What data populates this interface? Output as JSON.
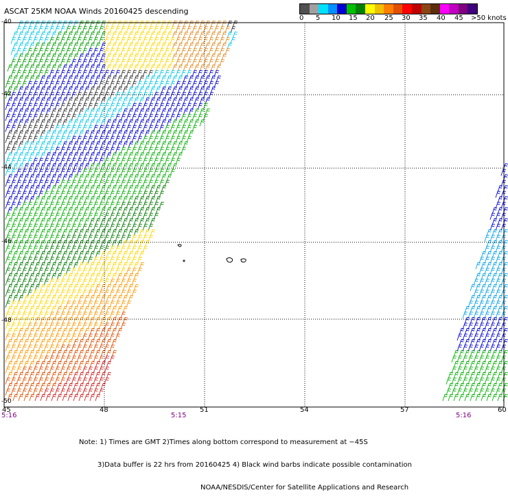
{
  "title": "ASCAT 25KM NOAA Winds 20160425 descending",
  "scale": {
    "colors": [
      "#505050",
      "#a0a0a0",
      "#00e0ff",
      "#0090ff",
      "#0000d0",
      "#00c000",
      "#008000",
      "#ffff00",
      "#f0c000",
      "#ff8000",
      "#e05000",
      "#ff0000",
      "#c00000",
      "#8b4513",
      "#5a2d0c",
      "#ff00ff",
      "#c000c0",
      "#800080",
      "#400080"
    ],
    "labels": [
      "0",
      "5",
      "10",
      "15",
      "20",
      "25",
      "30",
      "35",
      "40",
      "45",
      ">50 knots"
    ]
  },
  "axes": {
    "lon_labels": [
      "45",
      "48",
      "51",
      "54",
      "57",
      "60"
    ],
    "lat_labels": [
      "-40",
      "-42",
      "-44",
      "-46",
      "-48",
      "-50"
    ],
    "times": [
      "5:16",
      "5:15",
      "5:16"
    ]
  },
  "notes": {
    "line1": "Note: 1) Times are GMT 2)Times along bottom correspond to measurement at −45S",
    "line2": "3)Data buffer is 22 hrs from 20160425 4) Black wind barbs indicate possible contamination",
    "line3": "NOAA/NESDIS/Center for Satellite Applications and Research"
  }
}
